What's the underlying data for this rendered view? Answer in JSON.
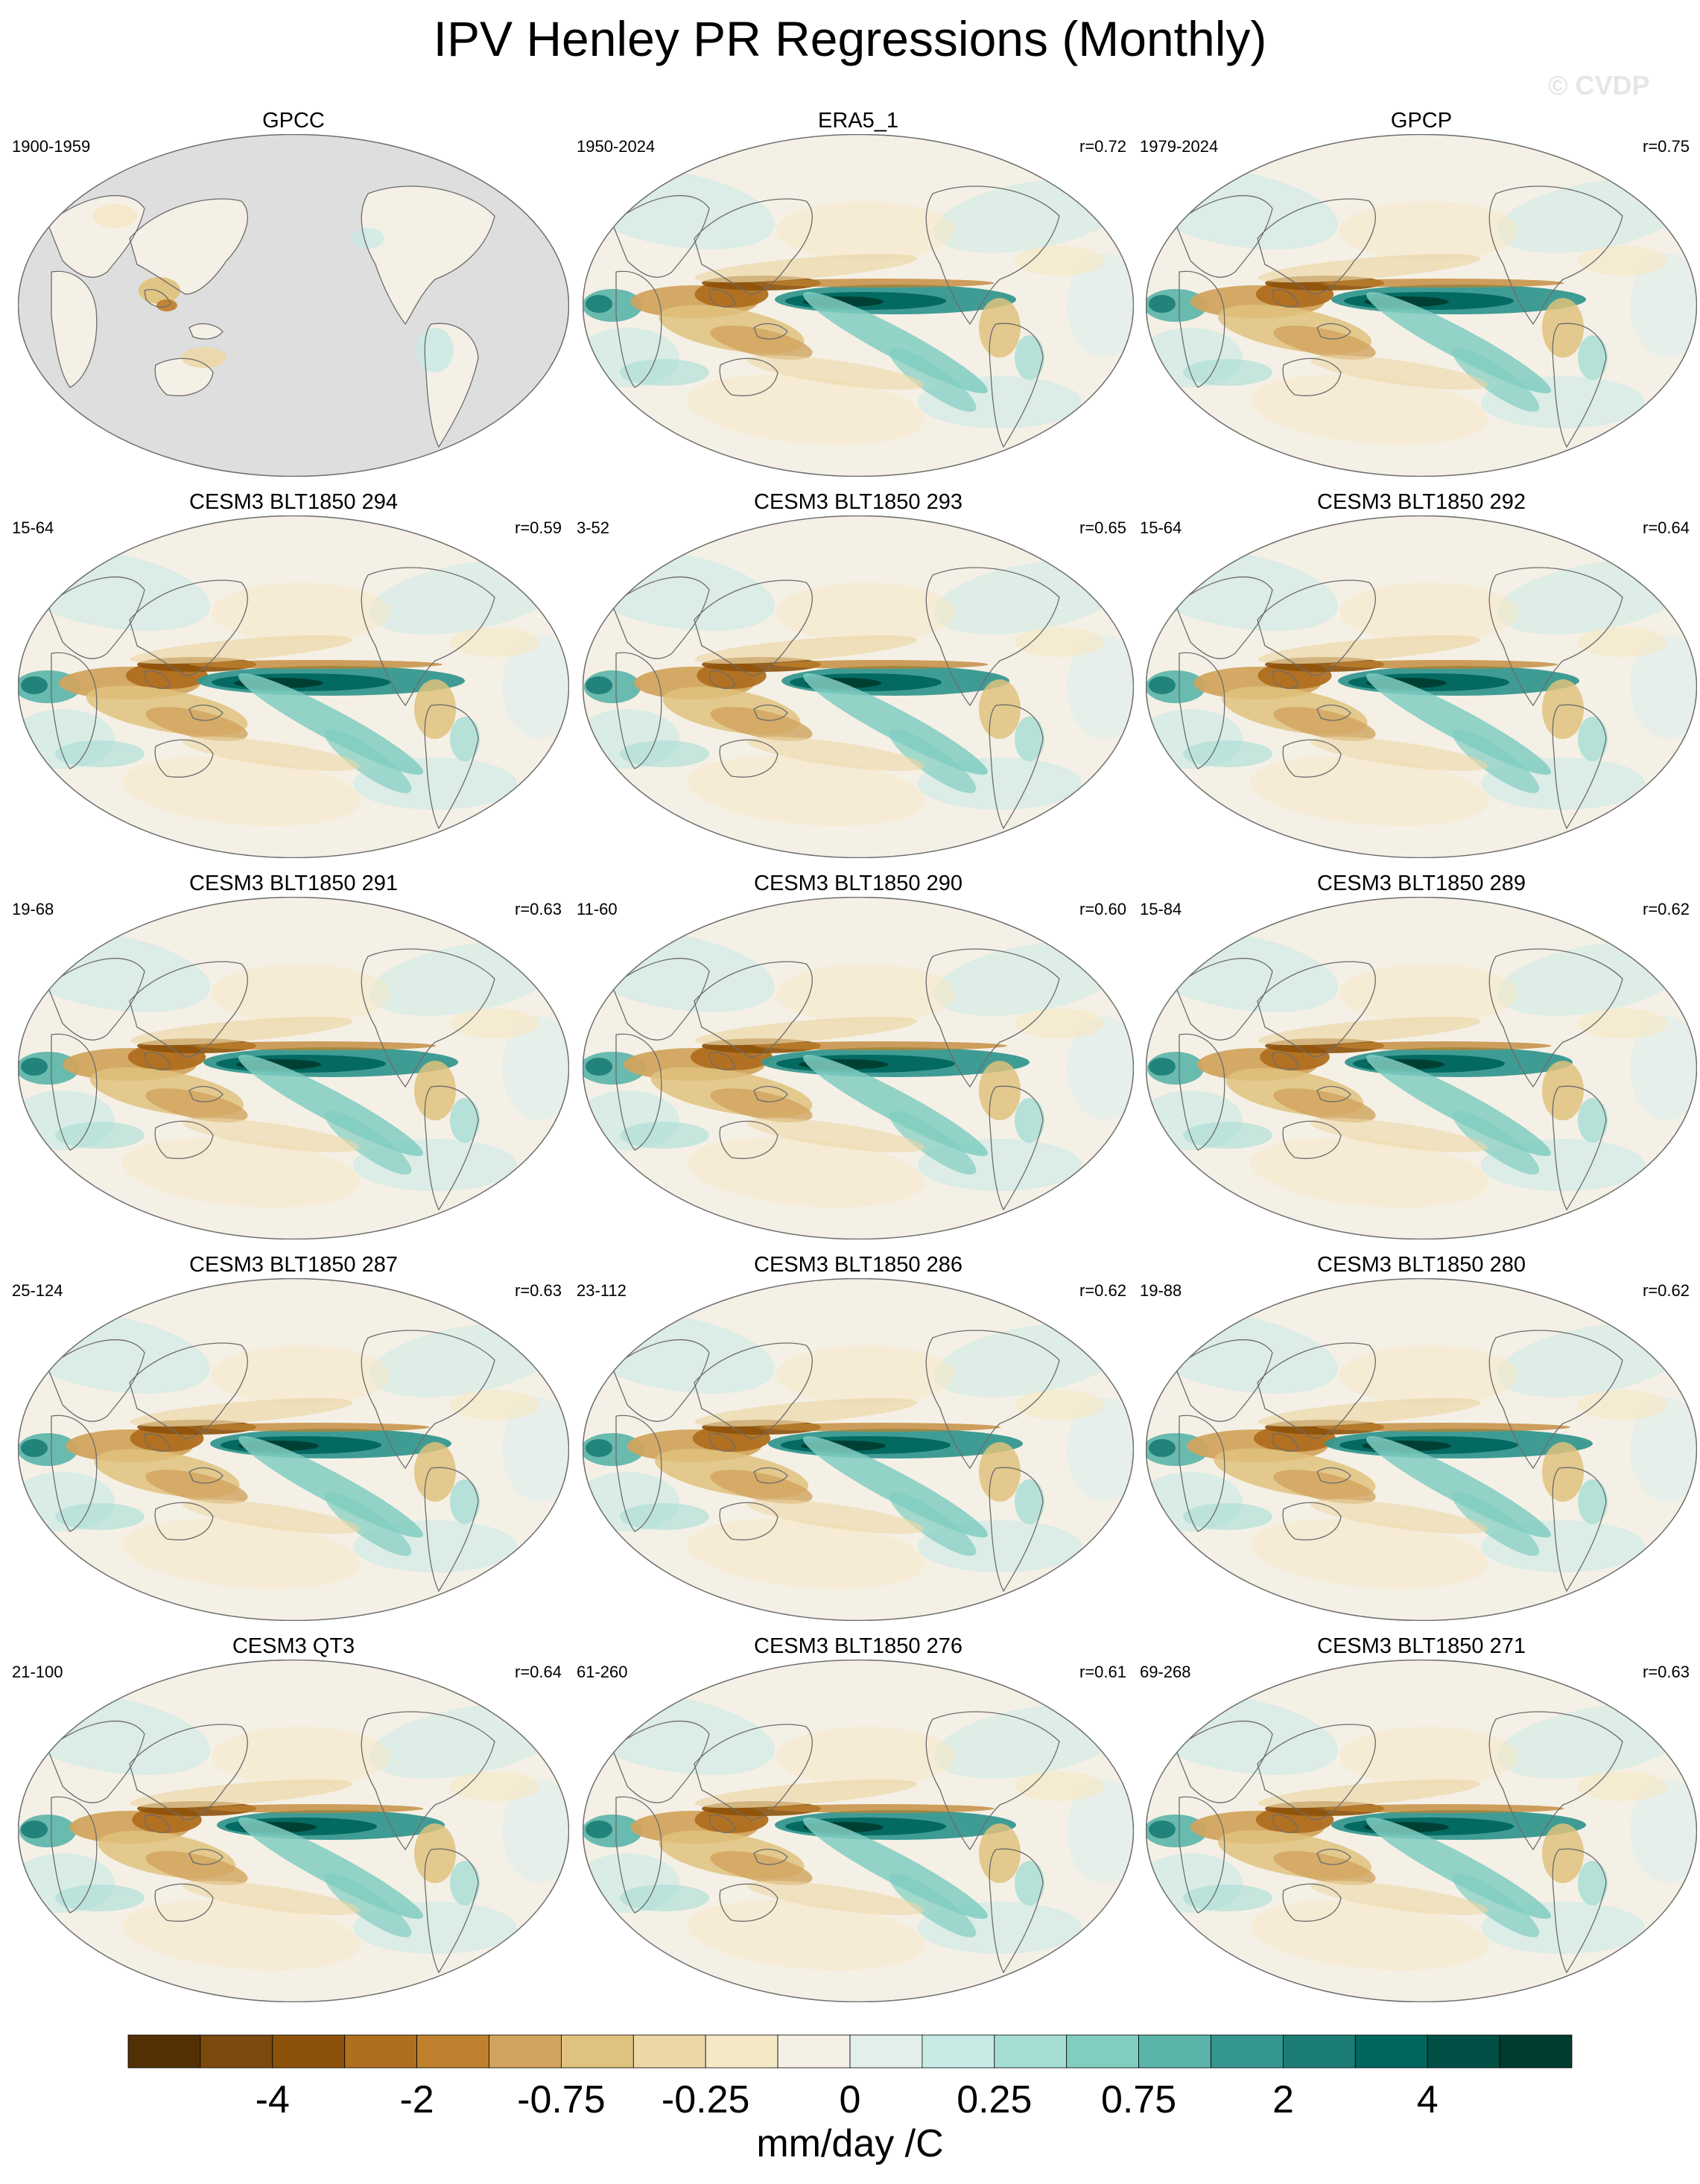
{
  "title": "IPV Henley PR Regressions (Monthly)",
  "watermark": "© CVDP",
  "chart_data": {
    "type": "heatmap",
    "title": "IPV Henley PR Regressions (Monthly)",
    "projection": "robinson-global-maps",
    "panels": [
      {
        "title": "GPCC",
        "period": "1900-1959",
        "r": "",
        "land_only": true
      },
      {
        "title": "ERA5_1",
        "period": "1950-2024",
        "r": "r=0.72",
        "land_only": false
      },
      {
        "title": "GPCP",
        "period": "1979-2024",
        "r": "r=0.75",
        "land_only": false
      },
      {
        "title": "CESM3 BLT1850 294",
        "period": "15-64",
        "r": "r=0.59",
        "land_only": false
      },
      {
        "title": "CESM3 BLT1850 293",
        "period": "3-52",
        "r": "r=0.65",
        "land_only": false
      },
      {
        "title": "CESM3 BLT1850 292",
        "period": "15-64",
        "r": "r=0.64",
        "land_only": false
      },
      {
        "title": "CESM3 BLT1850 291",
        "period": "19-68",
        "r": "r=0.63",
        "land_only": false
      },
      {
        "title": "CESM3 BLT1850 290",
        "period": "11-60",
        "r": "r=0.60",
        "land_only": false
      },
      {
        "title": "CESM3 BLT1850 289",
        "period": "15-84",
        "r": "r=0.62",
        "land_only": false
      },
      {
        "title": "CESM3 BLT1850 287",
        "period": "25-124",
        "r": "r=0.63",
        "land_only": false
      },
      {
        "title": "CESM3 BLT1850 286",
        "period": "23-112",
        "r": "r=0.62",
        "land_only": false
      },
      {
        "title": "CESM3 BLT1850 280",
        "period": "19-88",
        "r": "r=0.62",
        "land_only": false
      },
      {
        "title": "CESM3 QT3",
        "period": "21-100",
        "r": "r=0.64",
        "land_only": false
      },
      {
        "title": "CESM3 BLT1850 276",
        "period": "61-260",
        "r": "r=0.61",
        "land_only": false
      },
      {
        "title": "CESM3 BLT1850 271",
        "period": "69-268",
        "r": "r=0.63",
        "land_only": false
      }
    ],
    "colorbar": {
      "units": "mm/day /C",
      "tick_labels": [
        "-4",
        "-2",
        "-0.75",
        "-0.25",
        "0",
        "0.25",
        "0.75",
        "2",
        "4"
      ],
      "colors": [
        "#543005",
        "#7a4a0e",
        "#8c510a",
        "#b06e1f",
        "#bf812d",
        "#d1a45e",
        "#dfc27d",
        "#ecd7a6",
        "#f5e8c7",
        "#f5f0e6",
        "#e3efeb",
        "#c7eae5",
        "#a6ddd5",
        "#80cdc1",
        "#5ab4a8",
        "#35978f",
        "#1b7d75",
        "#01665e",
        "#014f45",
        "#003c30"
      ]
    }
  }
}
